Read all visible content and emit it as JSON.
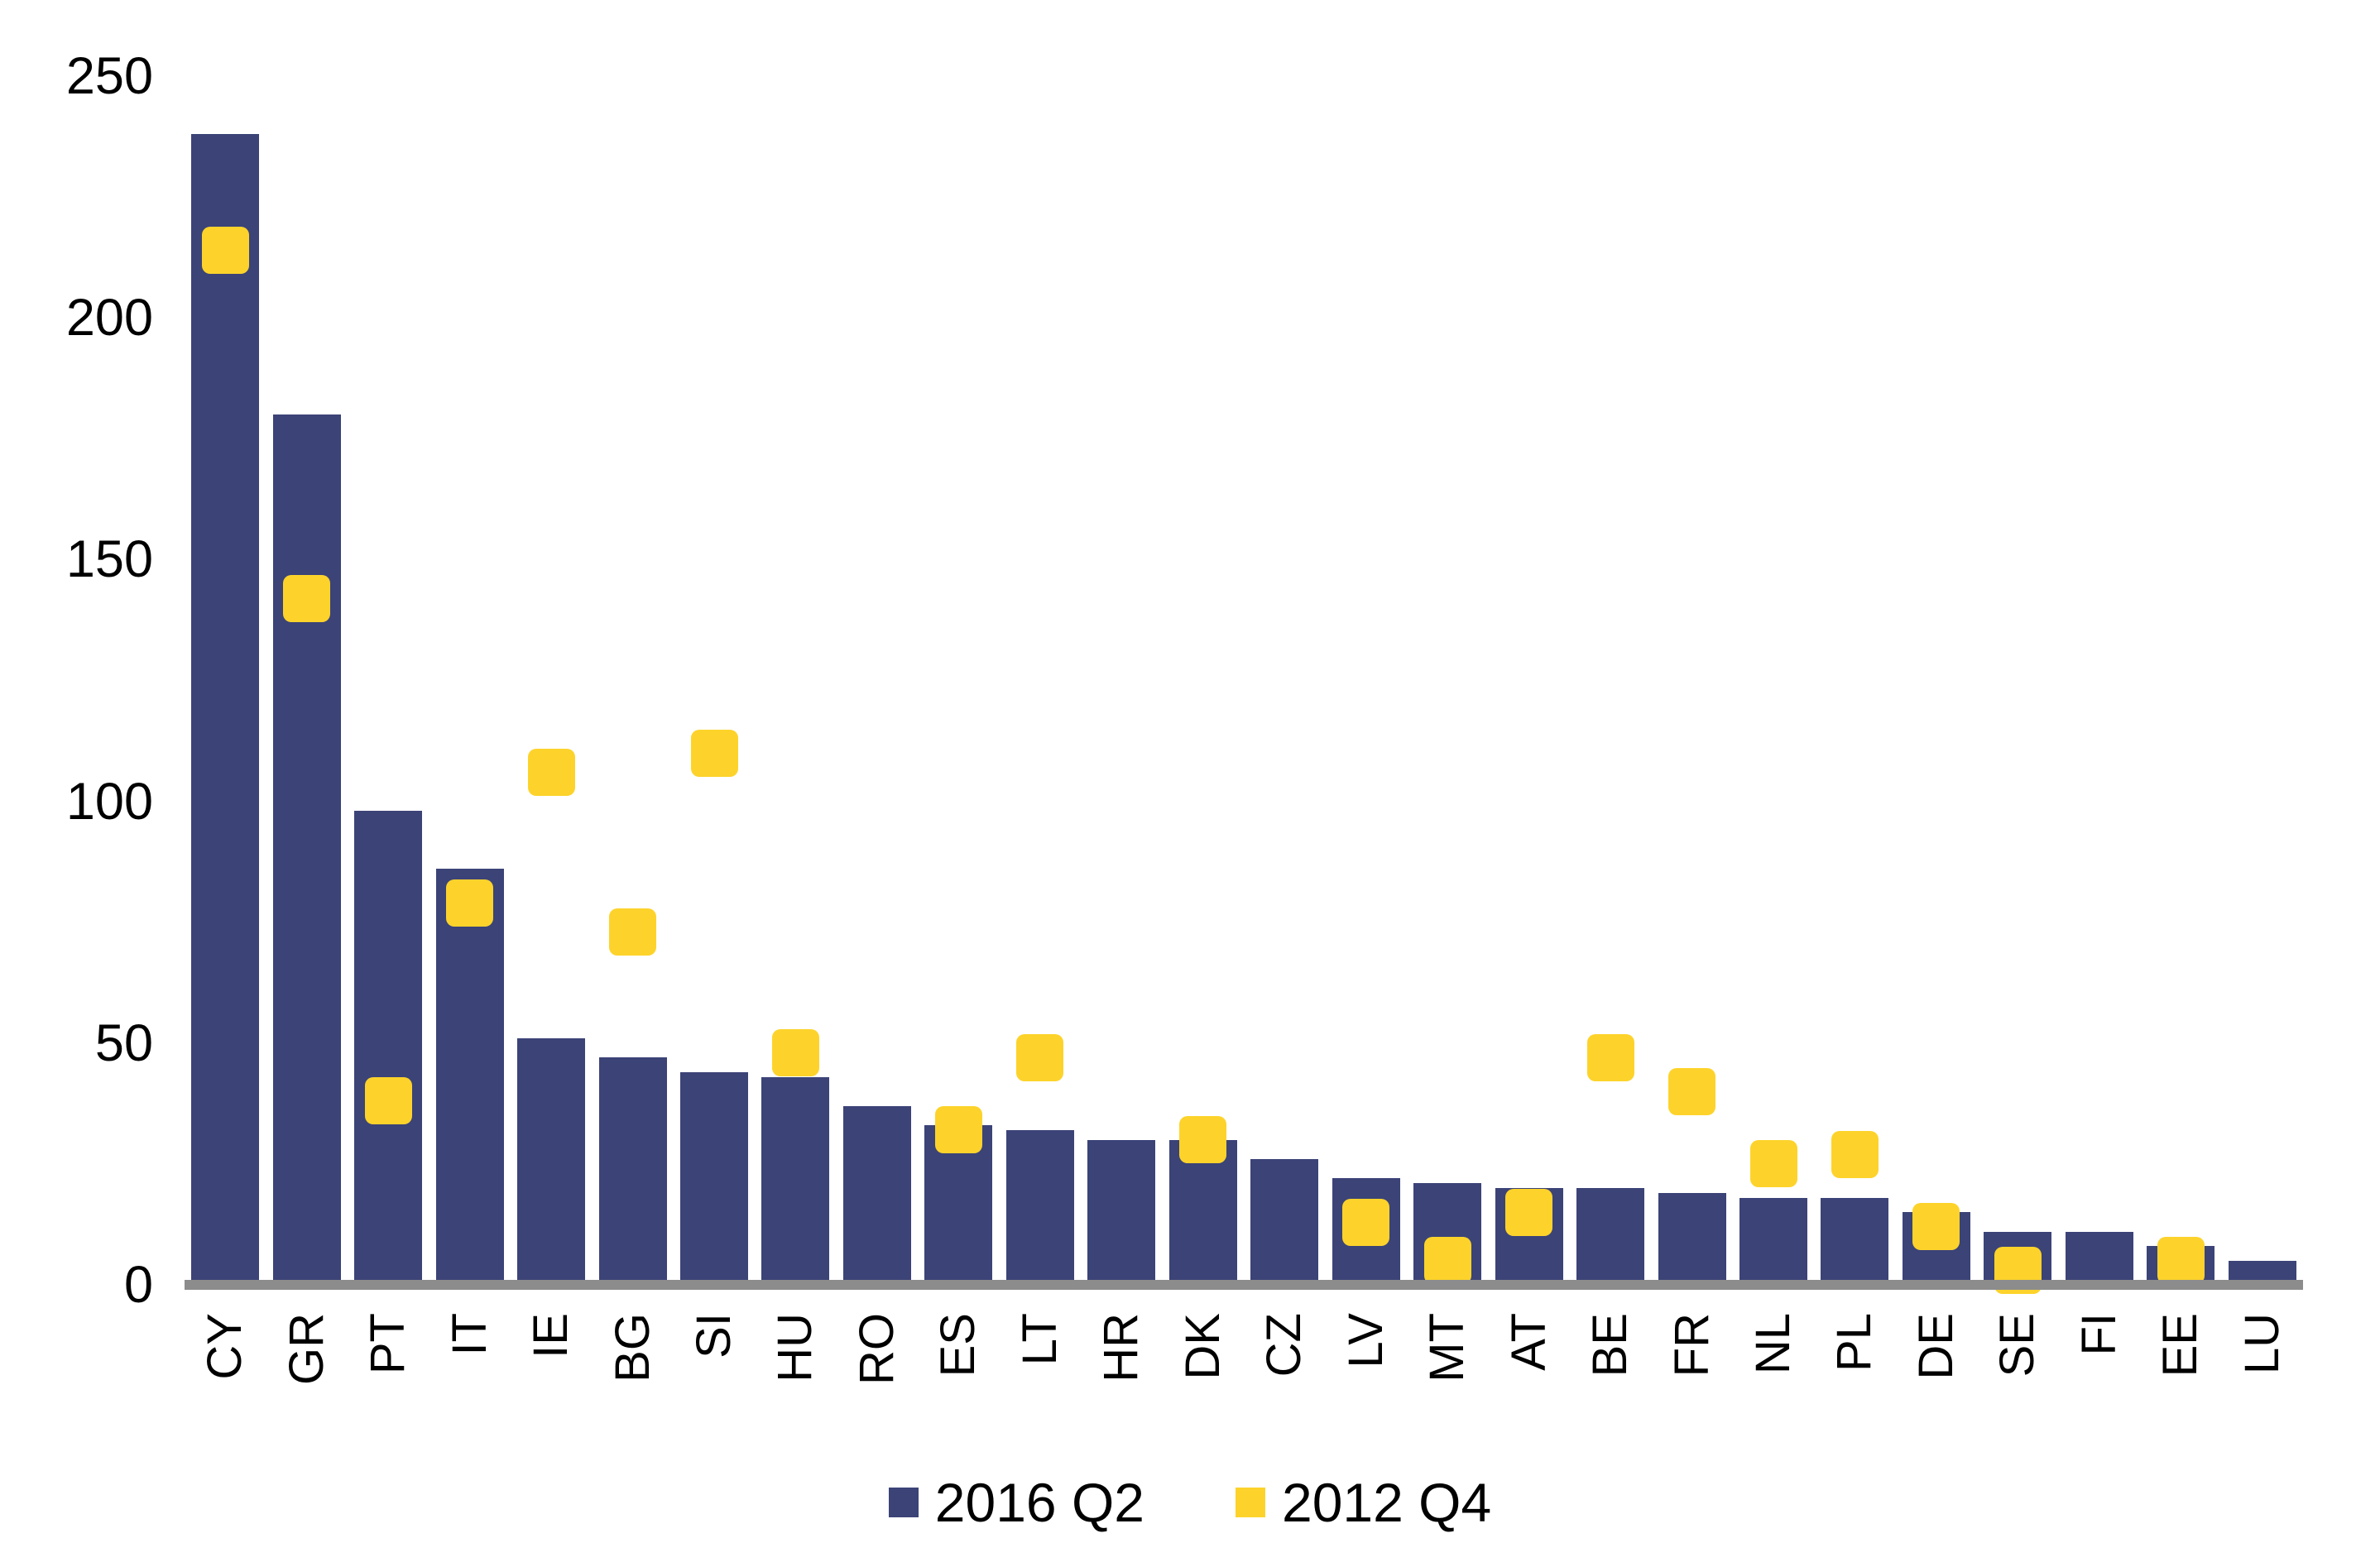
{
  "chart_data": {
    "type": "bar",
    "title": "",
    "xlabel": "",
    "ylabel": "",
    "categories": [
      "CY",
      "GR",
      "PT",
      "IT",
      "IE",
      "BG",
      "SI",
      "HU",
      "RO",
      "ES",
      "LT",
      "HR",
      "DK",
      "CZ",
      "LV",
      "MT",
      "AT",
      "BE",
      "FR",
      "NL",
      "PL",
      "DE",
      "SE",
      "FI",
      "EE",
      "LU"
    ],
    "series": [
      {
        "name": "2016 Q2",
        "render": "bar",
        "color": "#3B4377",
        "values": [
          238,
          180,
          98,
          86,
          51,
          47,
          44,
          43,
          37,
          33,
          32,
          30,
          30,
          26,
          22,
          21,
          20,
          20,
          19,
          18,
          18,
          15,
          11,
          11,
          8,
          5
        ]
      },
      {
        "name": "2012 Q4",
        "render": "square-marker",
        "color": "#FDD32B",
        "values": [
          214,
          142,
          38,
          79,
          106,
          73,
          110,
          48,
          null,
          32,
          47,
          null,
          30,
          null,
          13,
          5,
          15,
          47,
          40,
          25,
          27,
          12,
          3,
          null,
          5,
          null
        ]
      }
    ],
    "ylim": [
      0,
      250
    ],
    "yticks": [
      0,
      50,
      100,
      150,
      200,
      250
    ],
    "grid": false,
    "legend_position": "bottom",
    "axis_line_color": "#8C8C8C",
    "text_color": "#000000",
    "background_color": "#FFFFFF"
  },
  "legend": {
    "items": [
      {
        "label": "2016 Q2",
        "color": "#3B4377"
      },
      {
        "label": "2012 Q4",
        "color": "#FDD32B"
      }
    ]
  }
}
